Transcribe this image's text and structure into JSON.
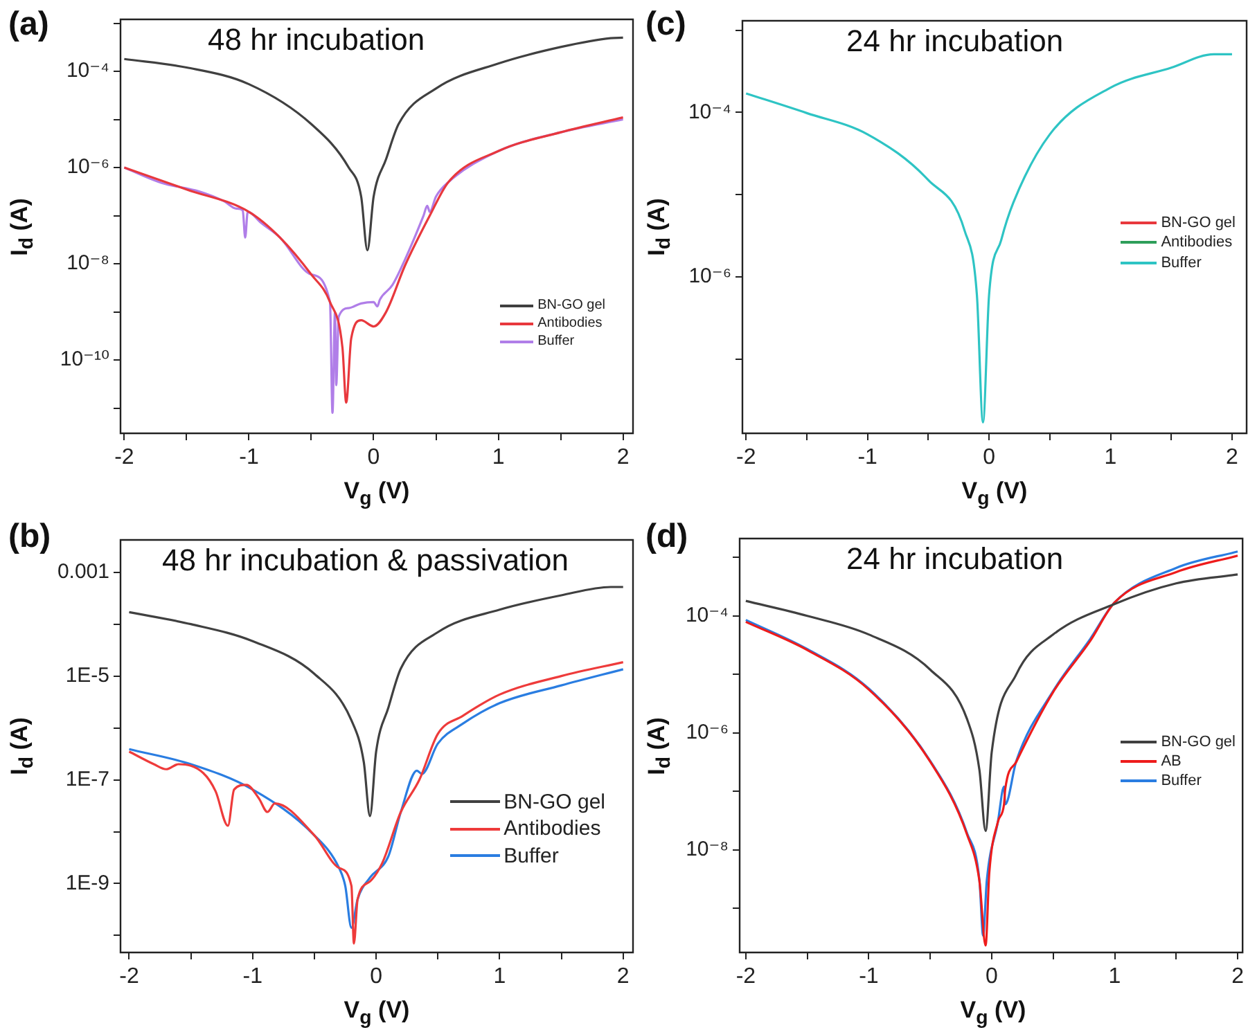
{
  "chart_data": [
    {
      "type": "line",
      "title": "(a)",
      "subtitle": "48 hr incubation",
      "xlabel": "V$_{g}$ (V)",
      "ylabel": "I$_{d}$ (A)",
      "log": "y",
      "legend": "bottom right",
      "marker": "none",
      "line_style": "solid",
      "xlim": [
        -2.03,
        2.08
      ],
      "xticks": [
        -2,
        {
          "value": -1.5,
          "label": null
        },
        -1,
        {
          "value": -0.5,
          "label": null
        },
        0,
        {
          "value": 0.5,
          "label": null
        },
        1,
        {
          "value": 1.5,
          "label": null
        },
        2
      ],
      "ylim": [
        3e-12,
        0.0012
      ],
      "yticks": [
        {
          "value": 1e-11,
          "label": null
        },
        {
          "value": 1e-10,
          "label": "10⁻¹⁰"
        },
        {
          "value": 1e-09,
          "label": null
        },
        {
          "value": 1e-08,
          "label": "10⁻⁸"
        },
        {
          "value": 1e-07,
          "label": null
        },
        {
          "value": 1e-06,
          "label": "10⁻⁶"
        },
        {
          "value": 1e-05,
          "label": null
        },
        {
          "value": 0.0001,
          "label": "10⁻⁴"
        },
        {
          "value": 0.001,
          "label": null
        }
      ],
      "series": [
        {
          "name": "BN-GO gel",
          "color": "#404040",
          "x": [
            -2,
            -1.5,
            -1,
            -0.5,
            -0.2,
            -0.1,
            -0.05,
            0,
            0.1,
            0.2,
            0.5,
            1,
            1.5,
            1.9,
            2
          ],
          "values": [
            0.00018,
            0.00012,
            5.4e-05,
            8e-06,
            1e-06,
            2.5e-07,
            1.9e-08,
            2.5e-07,
            1.5e-06,
            8e-06,
            4.4e-05,
            0.000145,
            0.00032,
            0.00049,
            0.0005
          ]
        },
        {
          "name": "Antibodies",
          "color": "#e8383d",
          "x": [
            -2,
            -1.5,
            -1,
            -0.75,
            -0.5,
            -0.35,
            -0.25,
            -0.22,
            -0.18,
            -0.1,
            0,
            0.1,
            0.25,
            0.45,
            0.6,
            1,
            1.5,
            2
          ],
          "values": [
            1e-06,
            3.5e-07,
            1.2e-07,
            3.5e-08,
            6e-09,
            1.6e-09,
            1.8e-10,
            1.3e-11,
            2.8e-10,
            6.7e-10,
            5e-10,
            1e-09,
            9e-09,
            1e-07,
            5e-07,
            2.2e-06,
            5.4e-06,
            1.1e-05
          ]
        },
        {
          "name": "Buffer",
          "color": "#b07ee8",
          "x": [
            -2,
            -1.7,
            -1.4,
            -1.2,
            -1.1,
            -1.05,
            -1.03,
            -1.01,
            -0.9,
            -0.75,
            -0.5,
            -0.35,
            -0.33,
            -0.31,
            -0.3,
            -0.28,
            -0.2,
            -0.1,
            0,
            0.03,
            0.05,
            0.15,
            0.25,
            0.4,
            0.43,
            0.45,
            0.5,
            0.6,
            1,
            1.5,
            2
          ],
          "values": [
            1e-06,
            4.8e-07,
            3.2e-07,
            2e-07,
            1.4e-07,
            1.3e-07,
            3.5e-08,
            1.2e-07,
            7e-08,
            3.5e-08,
            6e-09,
            1.6e-09,
            8e-12,
            1e-09,
            3e-11,
            8e-10,
            1.2e-09,
            1.5e-09,
            1.6e-09,
            1.3e-09,
            1.8e-09,
            3.6e-09,
            1.2e-08,
            1e-07,
            1.6e-07,
            1.2e-07,
            2.5e-07,
            5e-07,
            2.2e-06,
            5.4e-06,
            1e-05
          ]
        }
      ]
    },
    {
      "type": "line",
      "title": "(c)",
      "subtitle": "24 hr incubation",
      "xlabel": "V$_{g}$ (V)",
      "ylabel": "I$_{d}$ (A)",
      "log": "y",
      "legend": "right",
      "marker": "none",
      "line_style": "solid",
      "xlim": [
        -2.03,
        2.12
      ],
      "xticks": [
        -2,
        {
          "value": -1.5,
          "label": null
        },
        -1,
        {
          "value": -0.5,
          "label": null
        },
        0,
        {
          "value": 0.5,
          "label": null
        },
        1,
        {
          "value": 1.5,
          "label": null
        },
        2
      ],
      "ylim": [
        1.25e-08,
        0.0013
      ],
      "yticks": [
        {
          "value": 1e-07,
          "label": null
        },
        {
          "value": 1e-06,
          "label": "10⁻⁶"
        },
        {
          "value": 1e-05,
          "label": null
        },
        {
          "value": 0.0001,
          "label": "10⁻⁴"
        },
        {
          "value": 0.001,
          "label": null
        }
      ],
      "series": [
        {
          "name": "BN-GO gel",
          "color": "#e8383d"
        },
        {
          "name": "Antibodies",
          "color": "#2e9e5a"
        },
        {
          "name": "Buffer",
          "color": "#2ec4c4",
          "x": [
            -2,
            -1.5,
            -1,
            -0.5,
            -0.2,
            -0.1,
            -0.05,
            0,
            0.1,
            0.2,
            0.5,
            1,
            1.5,
            1.85,
            2
          ],
          "values": [
            0.00017,
            9.8e-05,
            5.4e-05,
            1.5e-05,
            3.6e-06,
            6e-07,
            1.7e-08,
            6e-07,
            2.8e-06,
            8e-06,
            5.4e-05,
            0.0002,
            0.00035,
            0.00051,
            0.00051
          ]
        }
      ]
    },
    {
      "type": "line",
      "title": "(b)",
      "subtitle": "48 hr incubation & passivation",
      "xlabel": "V$_{g}$ (V)",
      "ylabel": "I$_{d}$ (A)",
      "log": "y",
      "legend": "bottom right",
      "marker": "none",
      "line_style": "solid",
      "xlim": [
        -2.07,
        2.08
      ],
      "xticks": [
        -2,
        {
          "value": -1.5,
          "label": null
        },
        -1,
        {
          "value": -0.5,
          "label": null
        },
        0,
        {
          "value": 0.5,
          "label": null
        },
        1,
        {
          "value": 1.5,
          "label": null
        },
        2
      ],
      "ylim": [
        4.7e-11,
        0.0042
      ],
      "yticks": [
        {
          "value": 1e-10,
          "label": null
        },
        {
          "value": 1e-09,
          "label": "1E-9"
        },
        {
          "value": 1e-08,
          "label": null
        },
        {
          "value": 1e-07,
          "label": "1E-7"
        },
        {
          "value": 1e-06,
          "label": null
        },
        {
          "value": 1e-05,
          "label": "1E-5"
        },
        {
          "value": 0.0001,
          "label": null
        },
        {
          "value": 0.001,
          "label": "0.001"
        }
      ],
      "series": [
        {
          "name": "BN-GO gel",
          "color": "#404040",
          "x": [
            -2,
            -1.5,
            -1,
            -0.5,
            -0.2,
            -0.1,
            -0.05,
            0,
            0.1,
            0.2,
            0.5,
            1,
            1.5,
            1.9,
            2
          ],
          "values": [
            0.00017,
            0.0001,
            4.7e-05,
            1.1e-05,
            1.4e-06,
            2.2e-07,
            2e-08,
            3.5e-07,
            2.5e-06,
            1.4e-05,
            7e-05,
            0.00019,
            0.00036,
            0.00052,
            0.00052
          ]
        },
        {
          "name": "Antibodies",
          "color": "#ee3b3b",
          "x": [
            -2,
            -1.8,
            -1.7,
            -1.6,
            -1.4,
            -1.3,
            -1.2,
            -1.15,
            -1.05,
            -0.95,
            -0.88,
            -0.82,
            -0.5,
            -0.3,
            -0.2,
            -0.18,
            -0.15,
            -0.05,
            0.05,
            0.2,
            0.35,
            0.5,
            0.7,
            1,
            1.5,
            2
          ],
          "values": [
            3.5e-07,
            2e-07,
            1.6e-07,
            2e-07,
            1.35e-07,
            6e-08,
            1.3e-08,
            6.5e-08,
            8e-08,
            4.4e-08,
            2.4e-08,
            3.5e-08,
            8.5e-09,
            2e-09,
            9e-10,
            7e-11,
            5e-10,
            1.1e-09,
            2.5e-09,
            2.4e-08,
            1e-07,
            7.7e-07,
            1.7e-06,
            4.4e-06,
            1e-05,
            1.85e-05
          ]
        },
        {
          "name": "Buffer",
          "color": "#2a7de1",
          "x": [
            -2,
            -1.5,
            -1,
            -0.5,
            -0.3,
            -0.25,
            -0.2,
            -0.15,
            -0.05,
            0.1,
            0.2,
            0.33,
            0.37,
            0.5,
            0.7,
            1,
            1.5,
            2
          ],
          "values": [
            3.9e-07,
            2e-07,
            6.5e-08,
            8.5e-09,
            2e-09,
            9e-10,
            1.4e-10,
            5e-10,
            1.3e-09,
            3.4e-09,
            2.4e-08,
            1.5e-07,
            1.3e-07,
            5e-07,
            1.2e-06,
            3e-06,
            6.6e-06,
            1.35e-05
          ]
        }
      ]
    },
    {
      "type": "line",
      "title": "(d)",
      "subtitle": "24 hr incubation",
      "xlabel": "V$_{g}$ (V)",
      "ylabel": "I$_{d}$ (A)",
      "log": "y",
      "legend": "right",
      "marker": "none",
      "line_style": "solid",
      "xlim": [
        -2.05,
        2.04
      ],
      "xticks": [
        -2,
        {
          "value": -1.5,
          "label": null
        },
        -1,
        {
          "value": -0.5,
          "label": null
        },
        0,
        {
          "value": 0.5,
          "label": null
        },
        1,
        {
          "value": 1.5,
          "label": null
        },
        2
      ],
      "ylim": [
        1.75e-10,
        0.0021
      ],
      "yticks": [
        {
          "value": 1e-09,
          "label": null
        },
        {
          "value": 1e-08,
          "label": "10⁻⁸"
        },
        {
          "value": 1e-07,
          "label": null
        },
        {
          "value": 1e-06,
          "label": "10⁻⁶"
        },
        {
          "value": 1e-05,
          "label": null
        },
        {
          "value": 0.0001,
          "label": "10⁻⁴"
        },
        {
          "value": 0.001,
          "label": null
        }
      ],
      "series": [
        {
          "name": "BN-GO gel",
          "color": "#404040",
          "x": [
            -2,
            -1.5,
            -1,
            -0.5,
            -0.2,
            -0.1,
            -0.05,
            0,
            0.2,
            0.5,
            1,
            1.5,
            2
          ],
          "values": [
            0.00018,
            0.0001,
            4.8e-05,
            1.2e-05,
            1.7e-06,
            2.3e-07,
            2.1e-08,
            4.7e-07,
            1e-05,
            4.8e-05,
            0.00016,
            0.00036,
            0.00051
          ]
        },
        {
          "name": "AB",
          "color": "#ee1c1c",
          "x": [
            -2,
            -1.5,
            -1,
            -0.5,
            -0.2,
            -0.1,
            -0.05,
            -0.02,
            0.05,
            0.1,
            0.11,
            0.2,
            0.5,
            0.8,
            1,
            1.5,
            2
          ],
          "values": [
            7.9e-05,
            2.6e-05,
            5.5e-06,
            3.2e-07,
            1.8e-08,
            2.9e-09,
            2.3e-10,
            4e-09,
            3e-08,
            6e-08,
            1.1e-07,
            3.2e-07,
            5e-06,
            3.7e-05,
            0.00017,
            0.00056,
            0.00107
          ]
        },
        {
          "name": "Buffer",
          "color": "#2a7de1",
          "x": [
            -2,
            -1.5,
            -1,
            -0.5,
            -0.2,
            -0.1,
            -0.07,
            -0.04,
            0.05,
            0.1,
            0.11,
            0.2,
            0.5,
            0.8,
            1,
            1.5,
            2
          ],
          "values": [
            8.5e-05,
            2.7e-05,
            5.7e-06,
            3.3e-07,
            1.9e-08,
            3e-09,
            3.4e-10,
            3e-09,
            3e-08,
            1.2e-07,
            6e-08,
            3.3e-07,
            5.2e-06,
            4e-05,
            0.00017,
            0.00066,
            0.00126
          ]
        }
      ]
    }
  ]
}
